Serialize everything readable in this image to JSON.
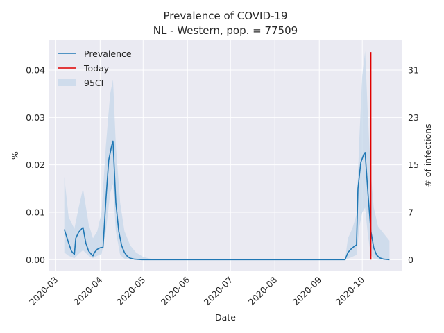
{
  "chart_data": {
    "type": "line",
    "title_line1": "Prevalence of COVID-19",
    "title_line2": "NL - Western, pop. = 77509",
    "xlabel": "Date",
    "ylabel_left": "%",
    "ylabel_right": "# of infections",
    "x_ticks": [
      "2020-03",
      "2020-04",
      "2020-05",
      "2020-06",
      "2020-07",
      "2020-08",
      "2020-09",
      "2020-10"
    ],
    "y_left_ticks": [
      "0.00",
      "0.01",
      "0.02",
      "0.03",
      "0.04"
    ],
    "y_right_ticks": [
      "0",
      "7",
      "15",
      "23",
      "31"
    ],
    "ylim_left": [
      -0.0023,
      0.0463
    ],
    "grid": true,
    "legend": {
      "placement": "top-left",
      "entries": [
        "Prevalence",
        "Today",
        "95CI"
      ]
    },
    "colors": {
      "prevalence": "#1f77b4",
      "today": "#e00000",
      "ci_fill": "#c6d7ea",
      "plot_bg": "#eaeaf2",
      "grid": "#ffffff"
    },
    "today_line": {
      "date": "2020-10-07",
      "y_range": [
        0.0,
        0.0438
      ]
    },
    "series": [
      {
        "name": "Prevalence",
        "points": [
          [
            "2020-03-07",
            0.0064
          ],
          [
            "2020-03-10",
            0.0035
          ],
          [
            "2020-03-12",
            0.0018
          ],
          [
            "2020-03-14",
            0.0011
          ],
          [
            "2020-03-15",
            0.0045
          ],
          [
            "2020-03-17",
            0.0058
          ],
          [
            "2020-03-20",
            0.0068
          ],
          [
            "2020-03-22",
            0.0035
          ],
          [
            "2020-03-24",
            0.0018
          ],
          [
            "2020-03-26",
            0.0011
          ],
          [
            "2020-03-27",
            0.0008
          ],
          [
            "2020-03-28",
            0.0015
          ],
          [
            "2020-03-30",
            0.0022
          ],
          [
            "2020-04-01",
            0.0025
          ],
          [
            "2020-04-03",
            0.0026
          ],
          [
            "2020-04-05",
            0.0125
          ],
          [
            "2020-04-07",
            0.021
          ],
          [
            "2020-04-09",
            0.024
          ],
          [
            "2020-04-10",
            0.025
          ],
          [
            "2020-04-12",
            0.012
          ],
          [
            "2020-04-14",
            0.006
          ],
          [
            "2020-04-16",
            0.003
          ],
          [
            "2020-04-18",
            0.0015
          ],
          [
            "2020-04-20",
            0.0007
          ],
          [
            "2020-04-22",
            0.0003
          ],
          [
            "2020-04-25",
            0.0001
          ],
          [
            "2020-04-30",
            0.0
          ],
          [
            "2020-09-19",
            0.0
          ],
          [
            "2020-09-21",
            0.0015
          ],
          [
            "2020-09-23",
            0.0022
          ],
          [
            "2020-09-25",
            0.0027
          ],
          [
            "2020-09-27",
            0.0031
          ],
          [
            "2020-09-28",
            0.015
          ],
          [
            "2020-09-30",
            0.0205
          ],
          [
            "2020-10-02",
            0.0222
          ],
          [
            "2020-10-03",
            0.0226
          ],
          [
            "2020-10-05",
            0.014
          ],
          [
            "2020-10-07",
            0.006
          ],
          [
            "2020-10-09",
            0.0025
          ],
          [
            "2020-10-11",
            0.001
          ],
          [
            "2020-10-13",
            0.0004
          ],
          [
            "2020-10-16",
            0.0001
          ],
          [
            "2020-10-20",
            0.0
          ]
        ]
      }
    ],
    "ci_band": {
      "name": "95CI",
      "upper": [
        [
          "2020-03-07",
          0.0175
        ],
        [
          "2020-03-10",
          0.009
        ],
        [
          "2020-03-14",
          0.0065
        ],
        [
          "2020-03-17",
          0.011
        ],
        [
          "2020-03-20",
          0.015
        ],
        [
          "2020-03-24",
          0.0075
        ],
        [
          "2020-03-27",
          0.0045
        ],
        [
          "2020-03-30",
          0.006
        ],
        [
          "2020-04-02",
          0.01
        ],
        [
          "2020-04-05",
          0.024
        ],
        [
          "2020-04-08",
          0.035
        ],
        [
          "2020-04-10",
          0.038
        ],
        [
          "2020-04-12",
          0.024
        ],
        [
          "2020-04-15",
          0.012
        ],
        [
          "2020-04-18",
          0.006
        ],
        [
          "2020-04-22",
          0.003
        ],
        [
          "2020-04-26",
          0.0015
        ],
        [
          "2020-05-01",
          0.0006
        ],
        [
          "2020-05-06",
          0.0002
        ],
        [
          "2020-05-10",
          0.0
        ],
        [
          "2020-09-19",
          0.0
        ],
        [
          "2020-09-21",
          0.0045
        ],
        [
          "2020-09-24",
          0.0065
        ],
        [
          "2020-09-27",
          0.0095
        ],
        [
          "2020-09-29",
          0.026
        ],
        [
          "2020-10-01",
          0.039
        ],
        [
          "2020-10-03",
          0.044
        ],
        [
          "2020-10-05",
          0.03
        ],
        [
          "2020-10-07",
          0.018
        ],
        [
          "2020-10-09",
          0.011
        ],
        [
          "2020-10-12",
          0.007
        ],
        [
          "2020-10-16",
          0.0055
        ],
        [
          "2020-10-20",
          0.004
        ]
      ],
      "lower": [
        [
          "2020-03-07",
          0.0015
        ],
        [
          "2020-03-10",
          0.0008
        ],
        [
          "2020-03-14",
          0.0003
        ],
        [
          "2020-03-17",
          0.0012
        ],
        [
          "2020-03-20",
          0.002
        ],
        [
          "2020-03-24",
          0.0008
        ],
        [
          "2020-03-27",
          0.0003
        ],
        [
          "2020-03-30",
          0.0008
        ],
        [
          "2020-04-02",
          0.0012
        ],
        [
          "2020-04-05",
          0.006
        ],
        [
          "2020-04-08",
          0.014
        ],
        [
          "2020-04-10",
          0.016
        ],
        [
          "2020-04-12",
          0.006
        ],
        [
          "2020-04-15",
          0.001
        ],
        [
          "2020-04-18",
          0.0002
        ],
        [
          "2020-04-22",
          0.0
        ],
        [
          "2020-09-19",
          0.0
        ],
        [
          "2020-09-21",
          0.0002
        ],
        [
          "2020-09-24",
          0.0006
        ],
        [
          "2020-09-27",
          0.001
        ],
        [
          "2020-09-29",
          0.007
        ],
        [
          "2020-10-01",
          0.01
        ],
        [
          "2020-10-03",
          0.011
        ],
        [
          "2020-10-05",
          0.005
        ],
        [
          "2020-10-07",
          0.001
        ],
        [
          "2020-10-09",
          0.0002
        ],
        [
          "2020-10-12",
          0.0
        ],
        [
          "2020-10-20",
          0.0
        ]
      ]
    }
  }
}
